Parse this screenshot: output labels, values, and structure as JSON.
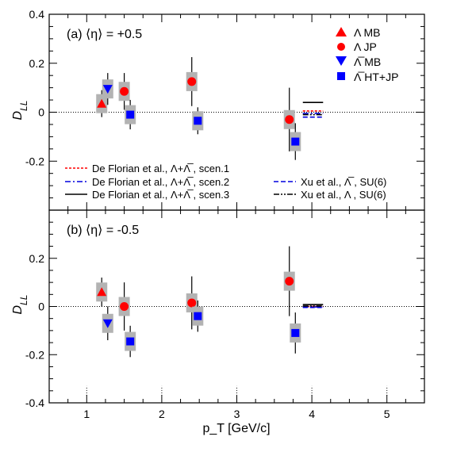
{
  "chart_data": [
    {
      "type": "scatter",
      "panel_label": "(a) ⟨η⟩ = +0.5",
      "ylabel": "D_LL",
      "ylim": [
        -0.4,
        0.4
      ],
      "yticks": [
        "0.4",
        "0.2",
        "0",
        "-0.2"
      ],
      "series": [
        {
          "name": "Λ MB",
          "marker": "triangle-up",
          "color": "#ff0000",
          "points": [
            {
              "x": 1.2,
              "y": 0.035,
              "err": 0.055
            }
          ]
        },
        {
          "name": "Λ JP",
          "marker": "circle",
          "color": "#ff0000",
          "points": [
            {
              "x": 1.5,
              "y": 0.085,
              "err": 0.075
            },
            {
              "x": 2.4,
              "y": 0.125,
              "err": 0.1
            },
            {
              "x": 3.7,
              "y": -0.03,
              "err": 0.13
            }
          ]
        },
        {
          "name": "Λ̅ MB",
          "marker": "triangle-down",
          "color": "#0000ff",
          "points": [
            {
              "x": 1.28,
              "y": 0.095,
              "err": 0.065
            }
          ]
        },
        {
          "name": "Λ̅ HT+JP",
          "marker": "square",
          "color": "#0000ff",
          "points": [
            {
              "x": 1.58,
              "y": -0.01,
              "err": 0.06
            },
            {
              "x": 2.48,
              "y": -0.035,
              "err": 0.055
            },
            {
              "x": 3.78,
              "y": -0.12,
              "err": 0.075
            }
          ]
        }
      ],
      "models": [
        {
          "style": "red-dotted",
          "color": "#ff0000",
          "y": 0.005
        },
        {
          "style": "blue-dashdot",
          "color": "#0000dd",
          "y": -0.005
        },
        {
          "style": "black-solid",
          "color": "#000000",
          "y": 0.04
        },
        {
          "style": "blue-dashed",
          "color": "#0000dd",
          "y": -0.02
        },
        {
          "style": "black-dashdotdot",
          "color": "#000000",
          "y": -0.01
        }
      ],
      "model_x_range": [
        3.88,
        4.15
      ]
    },
    {
      "type": "scatter",
      "panel_label": "(b) ⟨η⟩ = -0.5",
      "ylabel": "D_LL",
      "ylim": [
        -0.4,
        0.4
      ],
      "yticks": [
        "0.2",
        "0",
        "-0.2",
        "-0.4"
      ],
      "series": [
        {
          "marker": "triangle-up",
          "color": "#ff0000",
          "points": [
            {
              "x": 1.2,
              "y": 0.06,
              "err": 0.06
            }
          ]
        },
        {
          "marker": "circle",
          "color": "#ff0000",
          "points": [
            {
              "x": 1.5,
              "y": 0.0,
              "err": 0.1
            },
            {
              "x": 2.4,
              "y": 0.015,
              "err": 0.11
            },
            {
              "x": 3.7,
              "y": 0.105,
              "err": 0.145
            }
          ]
        },
        {
          "marker": "triangle-down",
          "color": "#0000ff",
          "points": [
            {
              "x": 1.28,
              "y": -0.07,
              "err": 0.07
            }
          ]
        },
        {
          "marker": "square",
          "color": "#0000ff",
          "points": [
            {
              "x": 1.58,
              "y": -0.145,
              "err": 0.065
            },
            {
              "x": 2.48,
              "y": -0.04,
              "err": 0.065
            },
            {
              "x": 3.78,
              "y": -0.11,
              "err": 0.085
            }
          ]
        }
      ],
      "models": [
        {
          "style": "red-dotted",
          "color": "#ff0000",
          "y": 0.0
        },
        {
          "style": "blue-dashdot",
          "color": "#0000dd",
          "y": -0.002
        },
        {
          "style": "black-solid",
          "color": "#000000",
          "y": 0.008
        },
        {
          "style": "blue-dashed",
          "color": "#0000dd",
          "y": -0.004
        },
        {
          "style": "black-dashdotdot",
          "color": "#000000",
          "y": 0.002
        }
      ],
      "model_x_range": [
        3.88,
        4.15
      ]
    }
  ],
  "xlim": [
    0.5,
    5.5
  ],
  "xticks": [
    "1",
    "2",
    "3",
    "4",
    "5"
  ],
  "xlabel": "p_T [GeV/c]",
  "grid": false,
  "legend_markers": {
    "lambda_mb": "Λ MB",
    "lambda_jp": "Λ JP",
    "lambdabar_mb": "Λ̅ MB",
    "lambdabar_htjp": "Λ̅ HT+JP"
  },
  "legend_models": {
    "m1": "De Florian et al., Λ+Λ̅ , scen.1",
    "m2": "De Florian et al., Λ+Λ̅ , scen.2",
    "m3": "De Florian et al., Λ+Λ̅ , scen.3",
    "m4": "Xu et al., Λ̅ , SU(6)",
    "m5": "Xu et al., Λ , SU(6)"
  }
}
